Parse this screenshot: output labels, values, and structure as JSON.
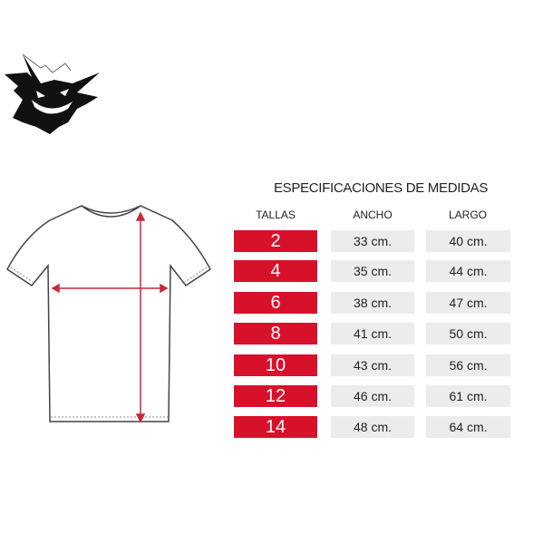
{
  "title": "ESPECIFICACIONES DE MEDIDAS",
  "headers": {
    "size": "TALLAS",
    "width": "ANCHO",
    "length": "LARGO"
  },
  "accent_color": "#d8112b",
  "cell_color": "#ececec",
  "logo_icon": "gengar-ghost-logo",
  "rows": [
    {
      "size": "2",
      "width": "33 cm.",
      "length": "40 cm."
    },
    {
      "size": "4",
      "width": "35 cm.",
      "length": "44 cm."
    },
    {
      "size": "6",
      "width": "38 cm.",
      "length": "47 cm."
    },
    {
      "size": "8",
      "width": "41 cm.",
      "length": "50 cm."
    },
    {
      "size": "10",
      "width": "43 cm.",
      "length": "56 cm."
    },
    {
      "size": "12",
      "width": "46 cm.",
      "length": "61 cm."
    },
    {
      "size": "14",
      "width": "48 cm.",
      "length": "64 cm."
    }
  ]
}
